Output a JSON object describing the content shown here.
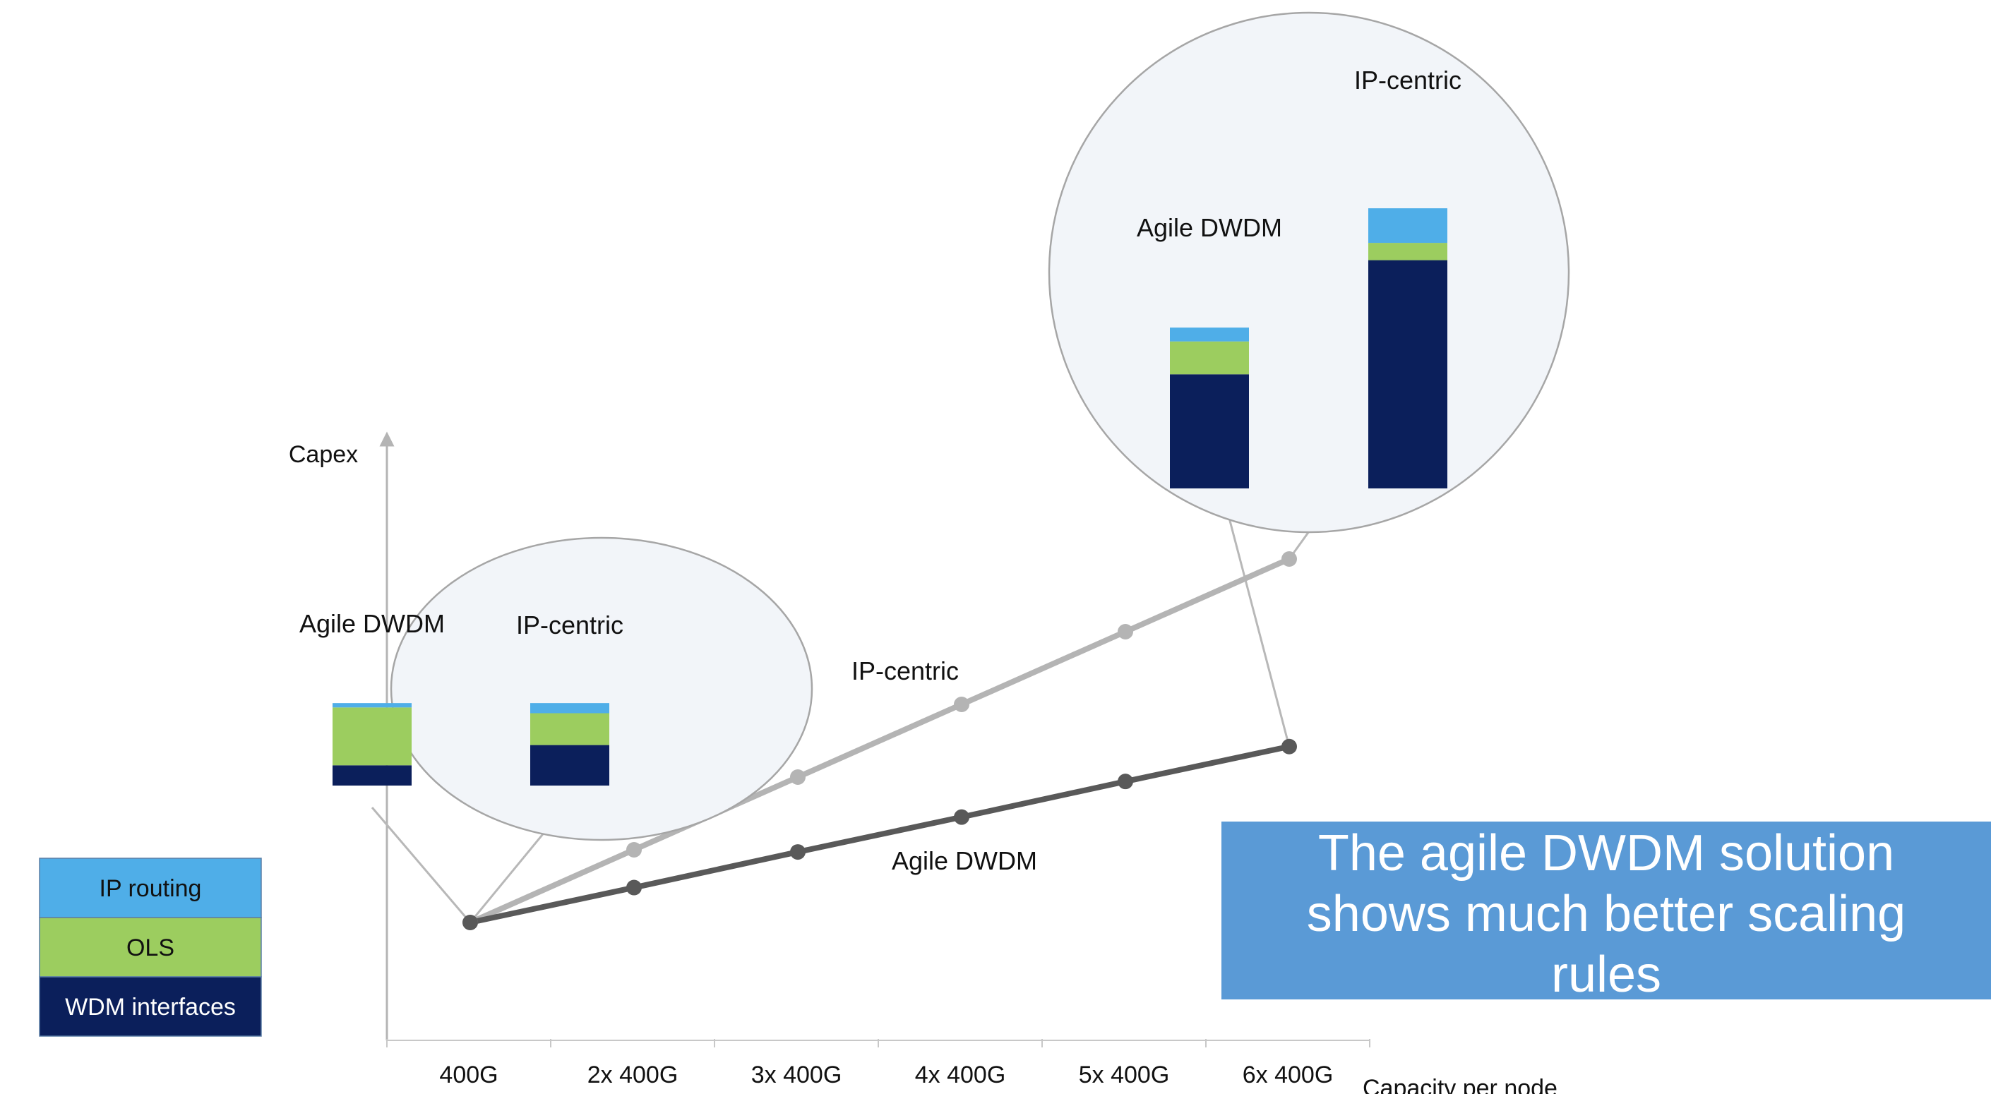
{
  "chart_data": {
    "type": "line",
    "ylabel": "Capex",
    "xlabel": "Capacity per node",
    "categories": [
      "400G",
      "2x 400G",
      "3x 400G",
      "4x 400G",
      "5x 400G",
      "6x 400G"
    ],
    "ylim": [
      0,
      10
    ],
    "series": [
      {
        "name": "IP-centric",
        "values": [
          0,
          1,
          2,
          3,
          4,
          5
        ],
        "color": "#b4b4b4"
      },
      {
        "name": "Agile DWDM",
        "values": [
          0,
          0.48,
          0.97,
          1.45,
          1.94,
          2.42
        ],
        "color": "#595959"
      }
    ],
    "insets": [
      {
        "at": "400G",
        "bars": [
          {
            "label": "Agile DWDM",
            "stack": {
              "WDM interfaces": 0.7,
              "OLS": 2.0,
              "IP routing": 0.15
            }
          },
          {
            "label": "IP-centric",
            "stack": {
              "WDM interfaces": 1.4,
              "OLS": 1.1,
              "IP routing": 0.35
            }
          }
        ]
      },
      {
        "at": "6x 400G",
        "bars": [
          {
            "label": "Agile DWDM",
            "stack": {
              "WDM interfaces": 6.6,
              "OLS": 1.9,
              "IP routing": 0.8
            }
          },
          {
            "label": "IP-centric",
            "stack": {
              "WDM interfaces": 13.2,
              "OLS": 1.0,
              "IP routing": 2.0
            }
          }
        ]
      }
    ],
    "legend": {
      "placement": "bottom-left",
      "items": [
        {
          "label": "IP routing",
          "color": "#4faee8"
        },
        {
          "label": "OLS",
          "color": "#9ccd5f"
        },
        {
          "label": "WDM interfaces",
          "color": "#0b1f5b"
        }
      ]
    }
  },
  "callout": {
    "lines": [
      "The agile DWDM solution",
      "shows much better scaling",
      "rules"
    ]
  }
}
